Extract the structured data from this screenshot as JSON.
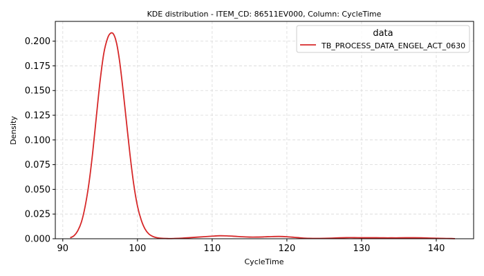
{
  "chart_data": {
    "type": "line",
    "title": "KDE distribution - ITEM_CD: 86511EV000, Column: CycleTime",
    "xlabel": "CycleTime",
    "ylabel": "Density",
    "xlim": [
      89,
      145
    ],
    "ylim": [
      0,
      0.22
    ],
    "xticks": [
      90,
      100,
      110,
      120,
      130,
      140
    ],
    "xtick_labels": [
      "90",
      "100",
      "110",
      "120",
      "130",
      "140"
    ],
    "yticks": [
      0.0,
      0.025,
      0.05,
      0.075,
      0.1,
      0.125,
      0.15,
      0.175,
      0.2
    ],
    "ytick_labels": [
      "0.000",
      "0.025",
      "0.050",
      "0.075",
      "0.100",
      "0.125",
      "0.150",
      "0.175",
      "0.200"
    ],
    "grid": true,
    "legend": {
      "title": "data",
      "placement": "top-right"
    },
    "series": [
      {
        "name": "TB_PROCESS_DATA_ENGEL_ACT_0630",
        "color": "#d62728",
        "x": [
          91,
          91.5,
          92,
          92.5,
          93,
          93.5,
          94,
          94.5,
          95,
          95.5,
          96,
          96.4,
          96.8,
          97.2,
          97.6,
          98,
          98.5,
          99,
          99.5,
          100,
          100.5,
          101,
          101.5,
          102,
          102.5,
          103,
          104,
          105,
          106,
          107,
          108,
          109,
          110,
          111,
          112,
          113,
          114,
          115,
          116,
          117,
          118,
          119,
          120,
          121,
          122,
          123,
          124,
          125,
          126,
          127,
          128,
          129,
          130,
          131,
          132,
          133,
          134,
          135,
          136,
          137,
          138,
          139,
          140,
          141,
          142,
          142.5
        ],
        "y": [
          0.001,
          0.003,
          0.008,
          0.017,
          0.033,
          0.056,
          0.087,
          0.124,
          0.16,
          0.188,
          0.203,
          0.208,
          0.207,
          0.198,
          0.18,
          0.155,
          0.12,
          0.085,
          0.055,
          0.033,
          0.019,
          0.01,
          0.005,
          0.0025,
          0.0012,
          0.0006,
          0.0002,
          0.0003,
          0.0006,
          0.0011,
          0.0016,
          0.0021,
          0.0026,
          0.003,
          0.0029,
          0.0025,
          0.002,
          0.0017,
          0.0017,
          0.0019,
          0.0022,
          0.0023,
          0.002,
          0.0014,
          0.0008,
          0.0004,
          0.0003,
          0.0004,
          0.0006,
          0.0009,
          0.0011,
          0.0011,
          0.001,
          0.001,
          0.001,
          0.0009,
          0.0009,
          0.0009,
          0.001,
          0.001,
          0.0009,
          0.0007,
          0.0005,
          0.0003,
          0.0002,
          0.0001
        ]
      }
    ]
  }
}
